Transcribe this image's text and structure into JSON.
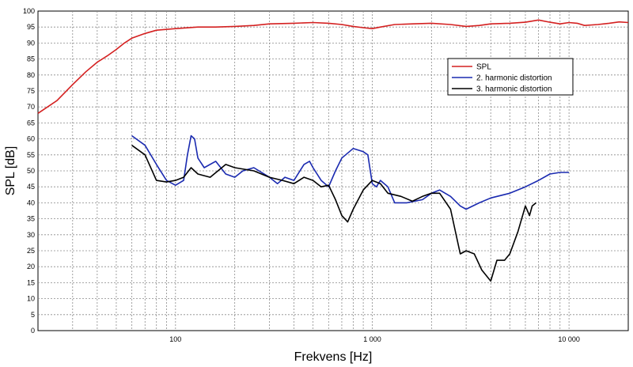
{
  "chart_data": {
    "type": "line",
    "xlabel": "Frekvens [Hz]",
    "ylabel": "SPL [dB]",
    "xscale": "log",
    "xlim": [
      20,
      20000
    ],
    "ylim": [
      0,
      100
    ],
    "grid": true,
    "legend_position": "top-right",
    "y_ticks": [
      "0",
      "5",
      "10",
      "15",
      "20",
      "25",
      "30",
      "35",
      "40",
      "45",
      "50",
      "55",
      "60",
      "65",
      "70",
      "75",
      "80",
      "85",
      "90",
      "95",
      "100"
    ],
    "x_ticks": [
      {
        "value": 100,
        "label": "100"
      },
      {
        "value": 1000,
        "label": "1 000"
      },
      {
        "value": 10000,
        "label": "10 000"
      }
    ],
    "series": [
      {
        "name": "SPL",
        "color": "#d42020",
        "points": [
          [
            20,
            68
          ],
          [
            25,
            72
          ],
          [
            30,
            77
          ],
          [
            35,
            81
          ],
          [
            40,
            84
          ],
          [
            45,
            86
          ],
          [
            50,
            88
          ],
          [
            55,
            90
          ],
          [
            60,
            91.5
          ],
          [
            70,
            93
          ],
          [
            80,
            94
          ],
          [
            100,
            94.5
          ],
          [
            130,
            95
          ],
          [
            160,
            95
          ],
          [
            200,
            95.2
          ],
          [
            250,
            95.5
          ],
          [
            300,
            96
          ],
          [
            400,
            96.2
          ],
          [
            500,
            96.4
          ],
          [
            600,
            96.2
          ],
          [
            700,
            95.8
          ],
          [
            800,
            95.2
          ],
          [
            900,
            94.8
          ],
          [
            1000,
            94.5
          ],
          [
            1100,
            95
          ],
          [
            1300,
            95.8
          ],
          [
            1600,
            96
          ],
          [
            2000,
            96.2
          ],
          [
            2500,
            95.8
          ],
          [
            3000,
            95.2
          ],
          [
            3500,
            95.5
          ],
          [
            4000,
            96
          ],
          [
            5000,
            96.2
          ],
          [
            6000,
            96.5
          ],
          [
            7000,
            97.2
          ],
          [
            8000,
            96.5
          ],
          [
            9000,
            96
          ],
          [
            10000,
            96.4
          ],
          [
            11000,
            96.2
          ],
          [
            12000,
            95.5
          ],
          [
            14000,
            95.8
          ],
          [
            16000,
            96.2
          ],
          [
            18000,
            96.6
          ],
          [
            20000,
            96.4
          ]
        ]
      },
      {
        "name": "2. harmonic distortion",
        "color": "#1a2ab0",
        "points": [
          [
            60,
            61
          ],
          [
            70,
            58
          ],
          [
            80,
            52
          ],
          [
            90,
            47
          ],
          [
            100,
            45.5
          ],
          [
            110,
            47
          ],
          [
            115,
            55
          ],
          [
            120,
            61
          ],
          [
            125,
            60
          ],
          [
            130,
            54
          ],
          [
            140,
            51
          ],
          [
            160,
            53
          ],
          [
            180,
            49
          ],
          [
            200,
            48
          ],
          [
            220,
            50
          ],
          [
            250,
            51
          ],
          [
            300,
            48
          ],
          [
            330,
            46
          ],
          [
            360,
            48
          ],
          [
            400,
            47
          ],
          [
            450,
            52
          ],
          [
            480,
            53
          ],
          [
            500,
            51
          ],
          [
            550,
            47
          ],
          [
            600,
            45
          ],
          [
            650,
            50
          ],
          [
            700,
            54
          ],
          [
            800,
            57
          ],
          [
            900,
            56
          ],
          [
            950,
            55
          ],
          [
            1000,
            46
          ],
          [
            1050,
            45
          ],
          [
            1100,
            47
          ],
          [
            1200,
            45
          ],
          [
            1300,
            40
          ],
          [
            1500,
            40
          ],
          [
            1800,
            41
          ],
          [
            2000,
            43
          ],
          [
            2200,
            44
          ],
          [
            2500,
            42
          ],
          [
            2800,
            39
          ],
          [
            3000,
            38
          ],
          [
            3500,
            40
          ],
          [
            4000,
            41.5
          ],
          [
            5000,
            43
          ],
          [
            6000,
            45
          ],
          [
            7000,
            47
          ],
          [
            8000,
            49
          ],
          [
            9000,
            49.5
          ],
          [
            10000,
            49.5
          ]
        ]
      },
      {
        "name": "3. harmonic distortion",
        "color": "#000000",
        "points": [
          [
            60,
            58
          ],
          [
            70,
            55
          ],
          [
            80,
            47
          ],
          [
            90,
            46.5
          ],
          [
            100,
            47
          ],
          [
            110,
            48
          ],
          [
            120,
            51
          ],
          [
            130,
            49
          ],
          [
            150,
            48
          ],
          [
            180,
            52
          ],
          [
            200,
            51
          ],
          [
            250,
            50
          ],
          [
            300,
            48
          ],
          [
            350,
            47
          ],
          [
            400,
            46
          ],
          [
            450,
            48
          ],
          [
            500,
            47
          ],
          [
            550,
            45
          ],
          [
            600,
            45.5
          ],
          [
            650,
            41
          ],
          [
            700,
            36
          ],
          [
            750,
            34
          ],
          [
            800,
            38
          ],
          [
            900,
            44
          ],
          [
            1000,
            47
          ],
          [
            1100,
            46
          ],
          [
            1200,
            43
          ],
          [
            1400,
            42
          ],
          [
            1600,
            40.5
          ],
          [
            1800,
            42
          ],
          [
            2000,
            43
          ],
          [
            2200,
            43
          ],
          [
            2500,
            38
          ],
          [
            2800,
            24
          ],
          [
            3000,
            25
          ],
          [
            3300,
            24
          ],
          [
            3600,
            19
          ],
          [
            4000,
            15.5
          ],
          [
            4300,
            22
          ],
          [
            4700,
            22
          ],
          [
            5000,
            24
          ],
          [
            5500,
            31
          ],
          [
            6000,
            39
          ],
          [
            6300,
            36
          ],
          [
            6500,
            39
          ],
          [
            6800,
            40
          ]
        ]
      }
    ]
  }
}
